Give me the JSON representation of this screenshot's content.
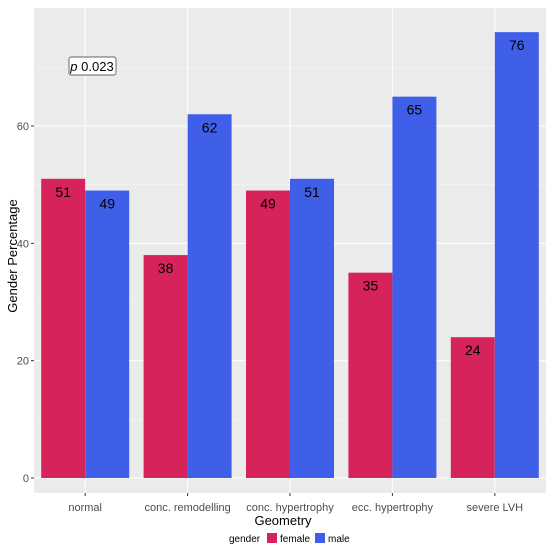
{
  "chart_data": {
    "type": "bar",
    "categories": [
      "normal",
      "conc. remodelling",
      "conc. hypertrophy",
      "ecc. hypertrophy",
      "severe LVH"
    ],
    "series": [
      {
        "name": "female",
        "values": [
          51,
          38,
          49,
          35,
          24
        ],
        "color": "#d6245a"
      },
      {
        "name": "male",
        "values": [
          49,
          62,
          51,
          65,
          76
        ],
        "color": "#3f5fe8"
      }
    ],
    "data_labels": [
      [
        "51",
        "49"
      ],
      [
        "38",
        "62"
      ],
      [
        "49",
        "51"
      ],
      [
        "35",
        "65"
      ],
      [
        "24",
        "76"
      ]
    ],
    "xlabel": "Geometry",
    "ylabel": "Gender Percentage",
    "ylim": [
      0,
      79
    ],
    "yticks": [
      0,
      20,
      40,
      60
    ],
    "grid": true,
    "legend_title": "gender",
    "legend_placement": "bottom",
    "annotation": {
      "italic": "p",
      "text": " 0.023"
    },
    "panel_background": "#ebebeb"
  }
}
